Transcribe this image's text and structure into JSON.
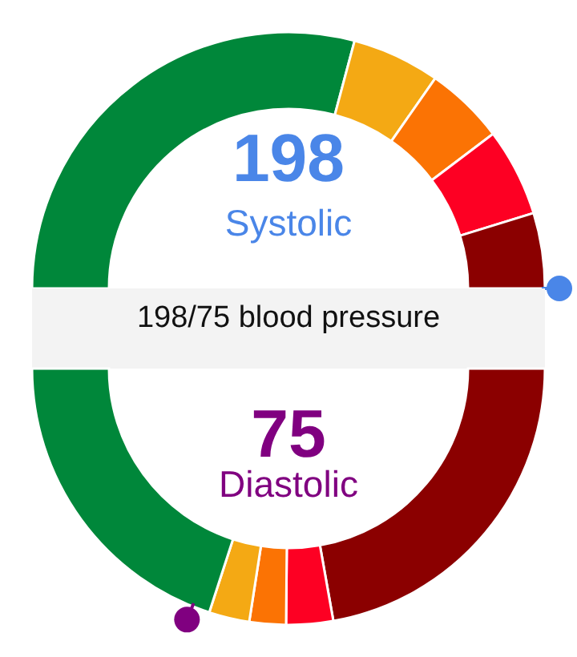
{
  "chart_data": [
    {
      "type": "donut",
      "title": "Systolic",
      "annotations": [
        "198",
        "198/75 blood pressure"
      ],
      "categories": [
        null,
        null,
        null,
        null,
        null
      ],
      "values": [
        58.3,
        11.1,
        10,
        11.1,
        9.5
      ],
      "colors": [
        "#00873a",
        "#f4a914",
        "#fb7304",
        "#fd0023",
        "#8b0000"
      ]
    },
    {
      "type": "donut",
      "title": "Diastolic",
      "annotations": [
        "75"
      ],
      "categories": [
        null,
        null,
        null,
        null,
        null
      ],
      "values": [
        44.4,
        5.9,
        4.6,
        5.1,
        40
      ],
      "colors": [
        "#8b0000",
        "#fd0023",
        "#fb7304",
        "#f4a914",
        "#00873a"
      ]
    }
  ]
}
